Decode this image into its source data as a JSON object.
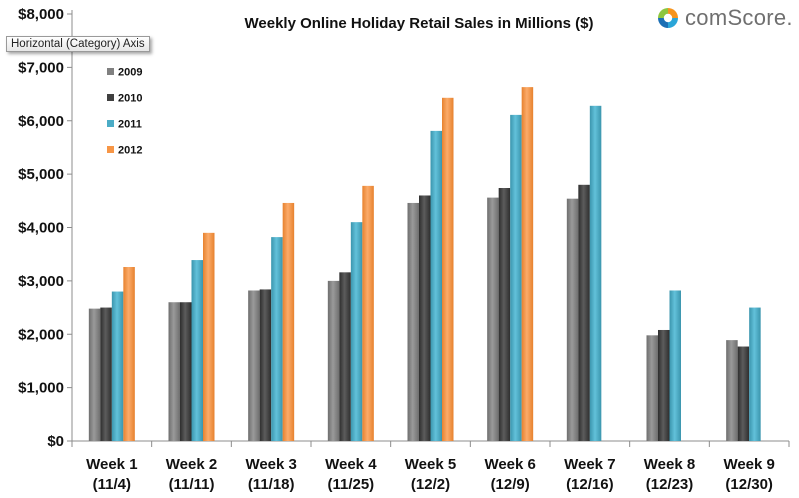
{
  "tooltip": "Horizontal (Category) Axis",
  "brand": {
    "name": "comScore."
  },
  "chart_data": {
    "type": "bar",
    "title": "Weekly Online Holiday Retail Sales in Millions ($)",
    "xlabel": "",
    "ylabel": "",
    "ylim": [
      0,
      8000
    ],
    "yticks": [
      "$0",
      "$1,000",
      "$2,000",
      "$3,000",
      "$4,000",
      "$5,000",
      "$6,000",
      "$7,000",
      "$8,000"
    ],
    "categories": [
      [
        "Week 1",
        "(11/4)"
      ],
      [
        "Week 2",
        "(11/11)"
      ],
      [
        "Week 3",
        "(11/18)"
      ],
      [
        "Week 4",
        "(11/25)"
      ],
      [
        "Week 5",
        "(12/2)"
      ],
      [
        "Week 6",
        "(12/9)"
      ],
      [
        "Week 7",
        "(12/16)"
      ],
      [
        "Week 8",
        "(12/23)"
      ],
      [
        "Week 9",
        "(12/30)"
      ]
    ],
    "legend": "top-left",
    "grid": false,
    "series": [
      {
        "name": "2009",
        "color": "#808080",
        "values": [
          2480,
          2600,
          2820,
          3000,
          4460,
          4560,
          4540,
          1980,
          1890
        ]
      },
      {
        "name": "2010",
        "color": "#404040",
        "values": [
          2500,
          2600,
          2840,
          3160,
          4600,
          4740,
          4800,
          2080,
          1770
        ]
      },
      {
        "name": "2011",
        "color": "#4bacc6",
        "values": [
          2800,
          3390,
          3820,
          4100,
          5810,
          6110,
          6280,
          2820,
          2500
        ]
      },
      {
        "name": "2012",
        "color": "#f79646",
        "values": [
          3260,
          3900,
          4460,
          4780,
          6430,
          6630,
          null,
          null,
          null
        ]
      }
    ],
    "bar_shading": {
      "2009": [
        "#6e6e6e",
        "#9a9a9a",
        "#6e6e6e"
      ],
      "2010": [
        "#2e2e2e",
        "#5c5c5c",
        "#2e2e2e"
      ],
      "2011": [
        "#3b95ad",
        "#62c1da",
        "#3b95ad"
      ],
      "2012": [
        "#e7822e",
        "#fbab6a",
        "#e7822e"
      ]
    }
  }
}
